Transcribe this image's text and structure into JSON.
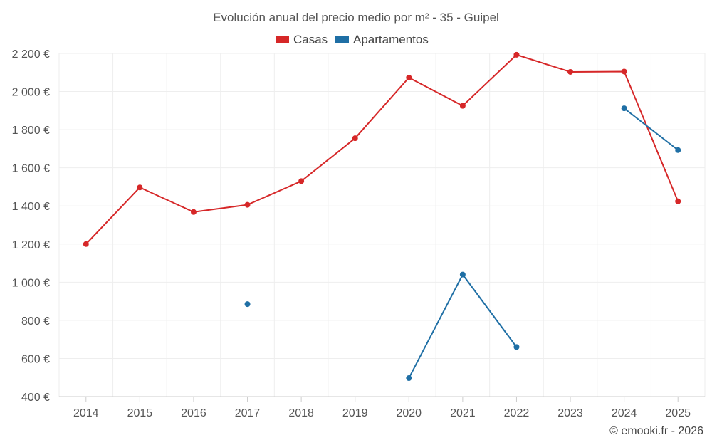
{
  "chart_data": {
    "type": "line",
    "title": "Evolución anual del precio medio por m² - 35 - Guipel",
    "categories": [
      "2014",
      "2015",
      "2016",
      "2017",
      "2018",
      "2019",
      "2020",
      "2021",
      "2022",
      "2023",
      "2024",
      "2025"
    ],
    "series": [
      {
        "name": "Casas",
        "color": "#d62728",
        "values": [
          1200,
          1497,
          1368,
          1406,
          1530,
          1755,
          2073,
          1925,
          2193,
          2103,
          2105,
          1424
        ]
      },
      {
        "name": "Apartamentos",
        "color": "#1f6fa5",
        "values": [
          null,
          null,
          null,
          885,
          null,
          null,
          497,
          1040,
          660,
          null,
          1912,
          1693
        ]
      }
    ],
    "ylim": [
      400,
      2200
    ],
    "yticks": [
      400,
      600,
      800,
      1000,
      1200,
      1400,
      1600,
      1800,
      2000,
      2200
    ],
    "ytick_labels": [
      "400 €",
      "600 €",
      "800 €",
      "1 000 €",
      "1 200 €",
      "1 400 €",
      "1 600 €",
      "1 800 €",
      "2 000 €",
      "2 200 €"
    ],
    "legend_position": "top-center",
    "grid": true
  },
  "credit": "© emooki.fr - 2026"
}
